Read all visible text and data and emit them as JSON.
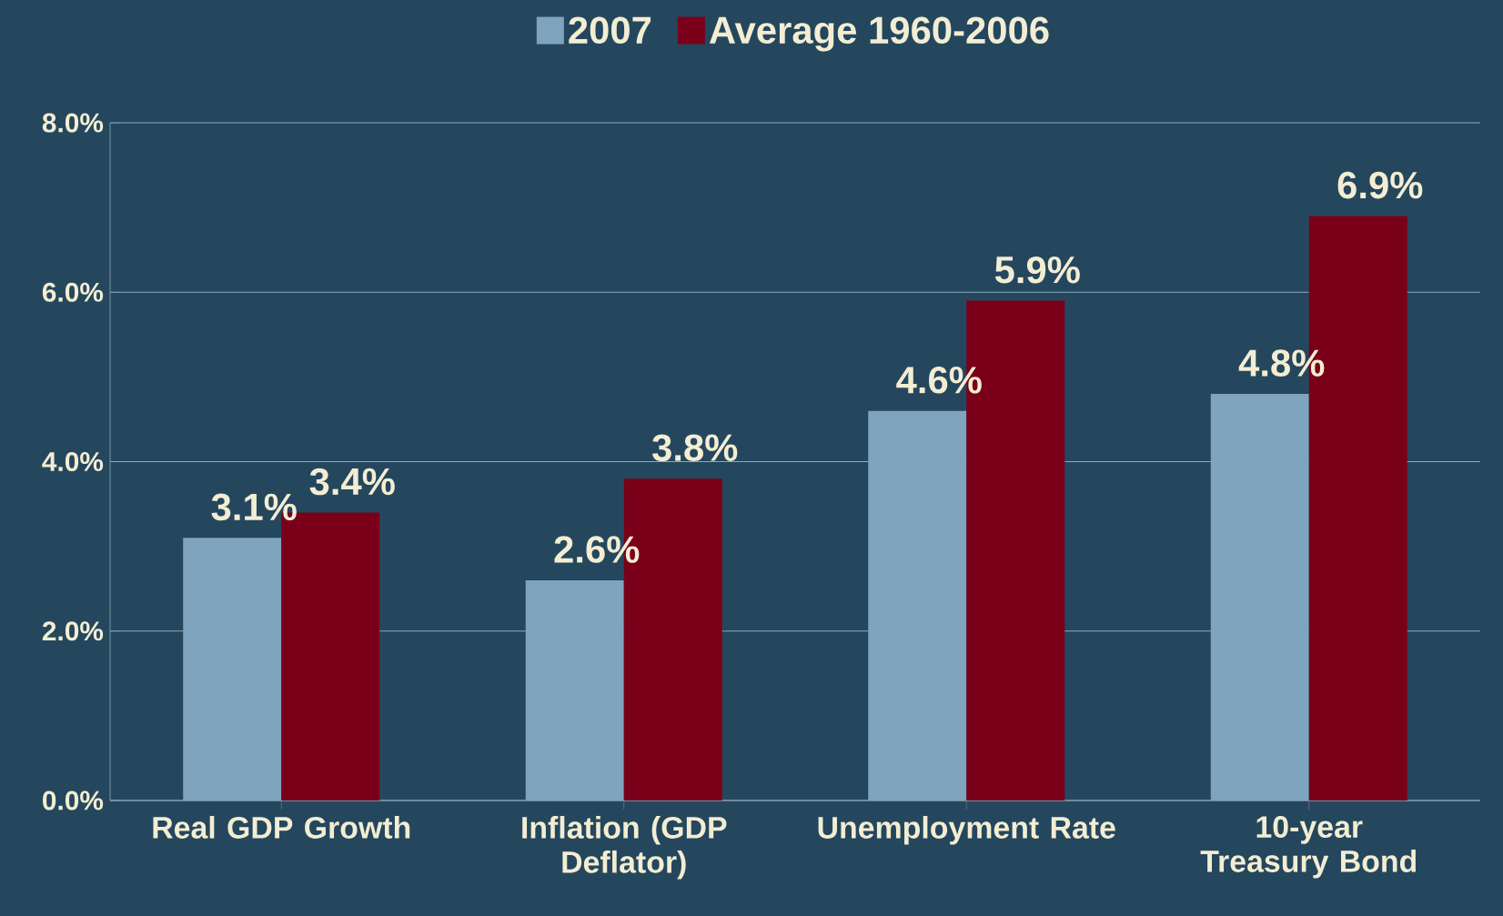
{
  "chart_data": {
    "type": "bar",
    "categories": [
      "Real GDP Growth",
      "Inflation (GDP Deflator)",
      "Unemployment Rate",
      "10-year Treasury Bond"
    ],
    "series": [
      {
        "name": "2007",
        "color": "#7fa5be",
        "values": [
          3.1,
          2.6,
          4.6,
          4.8
        ],
        "value_labels": [
          "3.1%",
          "2.6%",
          "4.6%",
          "4.8%"
        ]
      },
      {
        "name": "Average 1960-2006",
        "color": "#7a0019",
        "values": [
          3.4,
          3.8,
          5.9,
          6.9
        ],
        "value_labels": [
          "3.4%",
          "3.8%",
          "5.9%",
          "6.9%"
        ]
      }
    ],
    "ylim": [
      0,
      8
    ],
    "yticks": [
      {
        "value": 0,
        "label": "0.0%"
      },
      {
        "value": 2,
        "label": "2.0%"
      },
      {
        "value": 4,
        "label": "4.0%"
      },
      {
        "value": 6,
        "label": "6.0%"
      },
      {
        "value": 8,
        "label": "8.0%"
      }
    ],
    "grid": "y",
    "legend": "top"
  }
}
